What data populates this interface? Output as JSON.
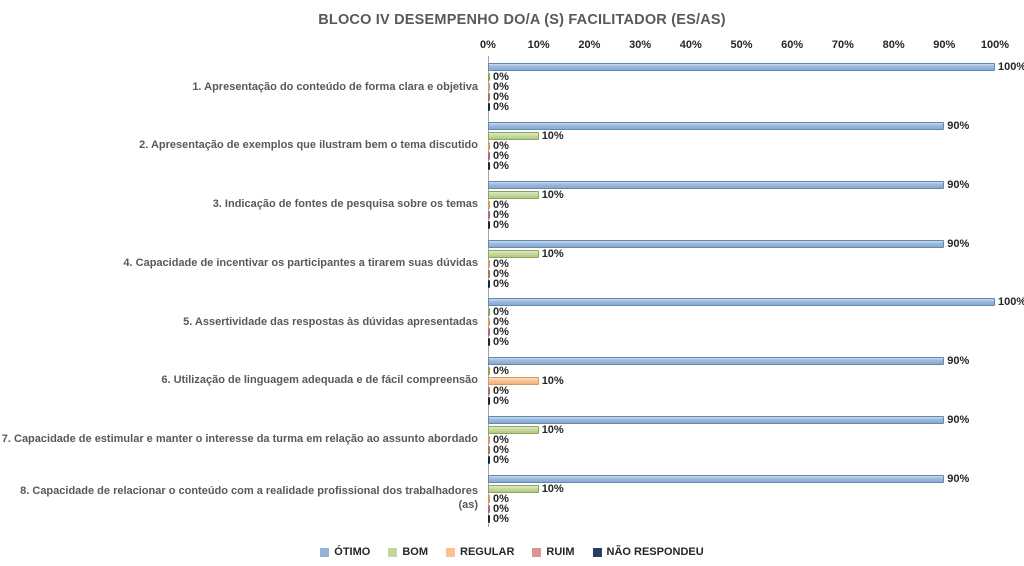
{
  "chart_data": {
    "type": "bar",
    "orientation": "horizontal",
    "title": "BLOCO IV DESEMPENHO DO/A (S) FACILITADOR (ES/AS)",
    "xlabel": "",
    "ylabel": "",
    "xlim": [
      0,
      100
    ],
    "x_ticks": [
      "0%",
      "10%",
      "20%",
      "30%",
      "40%",
      "50%",
      "60%",
      "70%",
      "80%",
      "90%",
      "100%"
    ],
    "grid": false,
    "legend_position": "bottom",
    "data_labels": true,
    "categories": [
      "1. Apresentação do conteúdo de forma clara e objetiva",
      "2. Apresentação de exemplos que ilustram bem o tema discutido",
      "3. Indicação de fontes de pesquisa sobre os temas",
      "4. Capacidade de incentivar os participantes a tirarem suas dúvidas",
      "5. Assertividade das respostas às dúvidas apresentadas",
      "6. Utilização de linguagem adequada e de fácil compreensão",
      "7. Capacidade de estimular e manter o interesse da turma em relação ao assunto abordado",
      "8. Capacidade de relacionar  o conteúdo com a realidade profissional dos trabalhadores (as)"
    ],
    "series": [
      {
        "name": "ÓTIMO",
        "color": "#95B3D7",
        "values": [
          100,
          90,
          90,
          90,
          100,
          90,
          90,
          90
        ]
      },
      {
        "name": "BOM",
        "color": "#C3D69B",
        "values": [
          0,
          10,
          10,
          10,
          0,
          0,
          10,
          10
        ]
      },
      {
        "name": "REGULAR",
        "color": "#FAC090",
        "values": [
          0,
          0,
          0,
          0,
          0,
          10,
          0,
          0
        ]
      },
      {
        "name": "RUIM",
        "color": "#D99694",
        "values": [
          0,
          0,
          0,
          0,
          0,
          0,
          0,
          0
        ]
      },
      {
        "name": "NÃO RESPONDEU",
        "color": "#254061",
        "values": [
          0,
          0,
          0,
          0,
          0,
          0,
          0,
          0
        ]
      }
    ]
  }
}
